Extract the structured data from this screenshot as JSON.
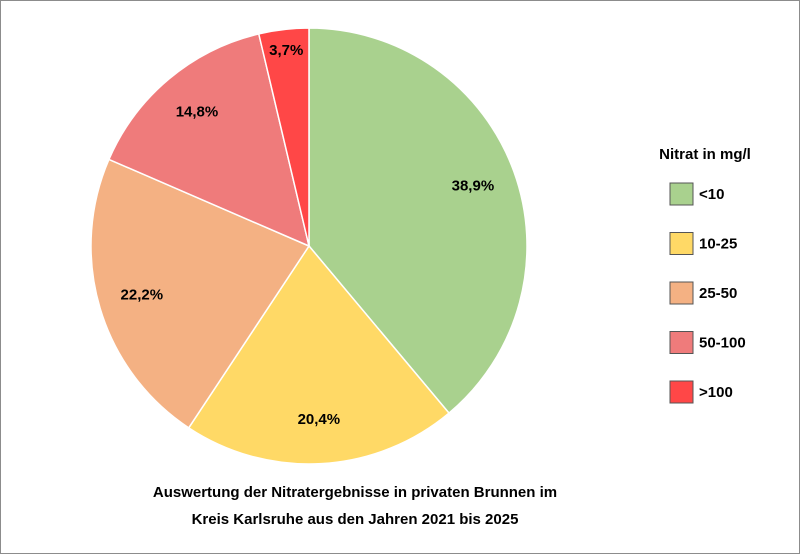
{
  "chart_data": {
    "type": "pie",
    "title": [
      "Auswertung der Nitratergebnisse in privaten Brunnen im",
      "Kreis Karlsruhe  aus den Jahren 2021 bis 2025"
    ],
    "legend_title": "Nitrat in mg/l",
    "legend": "right",
    "categories": [
      "<10",
      "10-25",
      "25-50",
      "50-100",
      ">100"
    ],
    "values": [
      38.9,
      20.4,
      22.2,
      14.8,
      3.7
    ],
    "value_labels": [
      "38,9%",
      "20,4%",
      "22,2%",
      "14,8%",
      "3,7%"
    ],
    "colors": [
      "#a9d18e",
      "#ffd966",
      "#f4b183",
      "#ef7b7b",
      "#ff4747"
    ]
  }
}
